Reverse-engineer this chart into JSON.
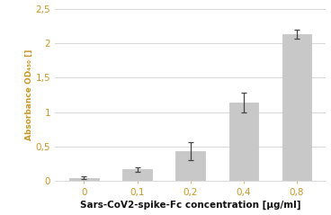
{
  "categories": [
    "0",
    "0,1",
    "0,2",
    "0,4",
    "0,8"
  ],
  "x_positions": [
    0,
    1,
    2,
    3,
    4
  ],
  "values": [
    0.05,
    0.17,
    0.44,
    1.14,
    2.13
  ],
  "errors": [
    0.02,
    0.03,
    0.13,
    0.14,
    0.06
  ],
  "bar_color": "#c8c8c8",
  "bar_edge_color": "#b8b8b8",
  "error_color": "#444444",
  "ylabel": "Absorbance OD₄₅₀ []",
  "xlabel": "Sars-CoV2-spike-Fc concentration [µg/ml]",
  "ylim": [
    0,
    2.5
  ],
  "yticks": [
    0,
    0.5,
    1,
    1.5,
    2,
    2.5
  ],
  "ytick_labels": [
    "0",
    "0,5",
    "1",
    "1,5",
    "2",
    "2,5"
  ],
  "background_color": "#ffffff",
  "left_bar_color": "#3a6b35",
  "grid_color": "#d8d8d8",
  "tick_color": "#c8982a",
  "ylabel_color": "#c8982a",
  "xlabel_color": "#111111",
  "bar_width": 0.55
}
